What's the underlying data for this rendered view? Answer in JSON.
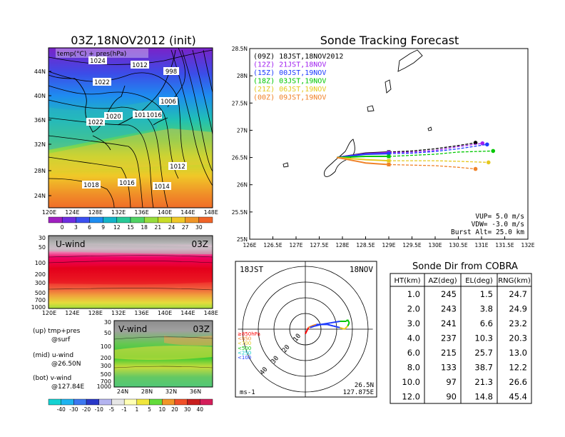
{
  "map_panel": {
    "title": "03Z,18NOV2012 (init)",
    "label": "temp(°C) + pres(hPa)",
    "lat_ticks": [
      "44N",
      "40N",
      "36N",
      "32N",
      "28N",
      "24N"
    ],
    "lon_ticks": [
      "120E",
      "124E",
      "128E",
      "132E",
      "136E",
      "140E",
      "144E",
      "148E"
    ],
    "pressure_labels": [
      "1024",
      "1012",
      "998",
      "1022",
      "1006",
      "1020",
      "1018",
      "1016",
      "1022",
      "1012",
      "1018",
      "1016",
      "1014"
    ],
    "colorbar_ticks": [
      "0",
      "3",
      "6",
      "9",
      "12",
      "15",
      "18",
      "21",
      "24",
      "27",
      "30"
    ],
    "colorbar_colors": [
      "#a020c0",
      "#6e2ee0",
      "#3c50f0",
      "#1e8cf0",
      "#14b4c8",
      "#28c896",
      "#50d264",
      "#96dc3c",
      "#c8dc28",
      "#f0c828",
      "#f09628",
      "#f06428"
    ]
  },
  "uwind_panel": {
    "title": "U-wind",
    "time": "03Z",
    "p_ticks": [
      "30",
      "50",
      "100",
      "200",
      "300",
      "500",
      "700",
      "1000"
    ],
    "lon_ticks": [
      "120E",
      "124E",
      "128E",
      "132E",
      "136E",
      "140E",
      "144E",
      "148E"
    ]
  },
  "vwind_panel": {
    "title": "V-wind",
    "time": "03Z",
    "p_ticks": [
      "30",
      "50",
      "100",
      "200",
      "300",
      "500",
      "700",
      "1000"
    ],
    "lat_ticks": [
      "24N",
      "28N",
      "32N",
      "36N"
    ],
    "colorbar_ticks": [
      "-40",
      "-30",
      "-20",
      "-10",
      "-5",
      "-1",
      "1",
      "5",
      "10",
      "20",
      "30",
      "40"
    ]
  },
  "legend_notes": [
    "(up) tmp+pres",
    "@surf",
    "(mid) u-wind",
    "@26.50N",
    "(bot) v-wind",
    "@127.84E"
  ],
  "chart_data": [
    {
      "type": "line",
      "title": "Sonde Tracking Forecast",
      "xlim": [
        126,
        132
      ],
      "ylim": [
        25,
        28.5
      ],
      "x_ticks": [
        "126E",
        "126.5E",
        "127E",
        "127.5E",
        "128E",
        "128.5E",
        "129E",
        "129.5E",
        "130E",
        "130.5E",
        "131E",
        "131.5E",
        "132E"
      ],
      "y_ticks": [
        "25N",
        "25.5N",
        "26N",
        "26.5N",
        "27N",
        "27.5N",
        "28N",
        "28.5N"
      ],
      "series": [
        {
          "name": "(09Z)  18JST,18NOV2012",
          "color": "#000000",
          "x": [
            127.88,
            128.5,
            129.0,
            129.5,
            130.0,
            130.5,
            130.87
          ],
          "y": [
            26.5,
            26.58,
            26.6,
            26.62,
            26.66,
            26.72,
            26.77
          ]
        },
        {
          "name": "(12Z)  21JST,18NOV",
          "color": "#a020f0",
          "x": [
            127.88,
            128.5,
            129.0,
            129.5,
            130.0,
            130.5,
            131.02
          ],
          "y": [
            26.5,
            26.57,
            26.59,
            26.6,
            26.63,
            26.7,
            26.76
          ]
        },
        {
          "name": "(15Z)  00JST,19NOV",
          "color": "#1e3cff",
          "x": [
            127.88,
            128.5,
            129.0,
            129.5,
            130.0,
            130.5,
            131.12
          ],
          "y": [
            26.5,
            26.56,
            26.57,
            26.58,
            26.61,
            26.66,
            26.74
          ]
        },
        {
          "name": "(18Z)  03JST,19NOV",
          "color": "#00c800",
          "x": [
            127.88,
            128.5,
            129.0,
            129.5,
            130.0,
            130.5,
            131.25
          ],
          "y": [
            26.5,
            26.52,
            26.52,
            26.54,
            26.56,
            26.6,
            26.62
          ]
        },
        {
          "name": "(21Z)  06JST,19NOV",
          "color": "#e6c81e",
          "x": [
            127.88,
            128.5,
            129.0,
            129.5,
            130.0,
            130.5,
            131.15
          ],
          "y": [
            26.5,
            26.46,
            26.44,
            26.44,
            26.44,
            26.43,
            26.41
          ]
        },
        {
          "name": "(00Z)  09JST,19NOV",
          "color": "#f08228",
          "x": [
            127.88,
            128.5,
            129.0,
            129.5,
            130.0,
            130.5,
            130.87
          ],
          "y": [
            26.5,
            26.4,
            26.37,
            26.36,
            26.35,
            26.32,
            26.29
          ]
        }
      ],
      "annotations": [
        "VUP=  5.0 m/s",
        "VDW= -3.0 m/s",
        "Burst Alt=  25.0 km"
      ]
    },
    {
      "type": "line",
      "title": "18JST 18NOV",
      "time_label": "18JST",
      "date_label": "18NOV",
      "units": "ms-1",
      "position": [
        "26.5N",
        "127.875E"
      ],
      "ring_labels": [
        "10",
        "20",
        "30",
        "40"
      ],
      "hodograph_u": [
        0,
        1,
        2,
        4,
        7,
        10,
        14,
        18,
        22,
        25,
        27,
        28,
        27,
        26,
        22,
        16,
        10,
        6,
        3
      ],
      "hodograph_v": [
        -3,
        -1,
        1,
        2,
        3,
        3,
        3,
        2,
        1,
        0,
        2,
        4,
        6,
        5,
        5,
        4,
        3,
        2,
        1
      ],
      "level_legend": [
        {
          "label": "≥850hPa",
          "color": "#ff0000"
        },
        {
          "label": "<850",
          "color": "#f08228"
        },
        {
          "label": "<700",
          "color": "#e6c81e"
        },
        {
          "label": "<500",
          "color": "#00c800"
        },
        {
          "label": "<250",
          "color": "#00c8c8"
        },
        {
          "label": "<100",
          "color": "#1e3cff"
        }
      ]
    },
    {
      "type": "table",
      "title": "Sonde Dir from COBRA",
      "columns": [
        "HT(km)",
        "AZ(deg)",
        "EL(deg)",
        "RNG(km)"
      ],
      "rows": [
        [
          "1.0",
          "245",
          "1.5",
          "24.7"
        ],
        [
          "2.0",
          "243",
          "3.8",
          "24.9"
        ],
        [
          "3.0",
          "241",
          "6.6",
          "23.2"
        ],
        [
          "4.0",
          "237",
          "10.3",
          "20.3"
        ],
        [
          "6.0",
          "215",
          "25.7",
          "13.0"
        ],
        [
          "8.0",
          "133",
          "38.7",
          "12.2"
        ],
        [
          "10.0",
          "97",
          "21.3",
          "26.6"
        ],
        [
          "12.0",
          "90",
          "14.8",
          "45.4"
        ]
      ]
    }
  ]
}
